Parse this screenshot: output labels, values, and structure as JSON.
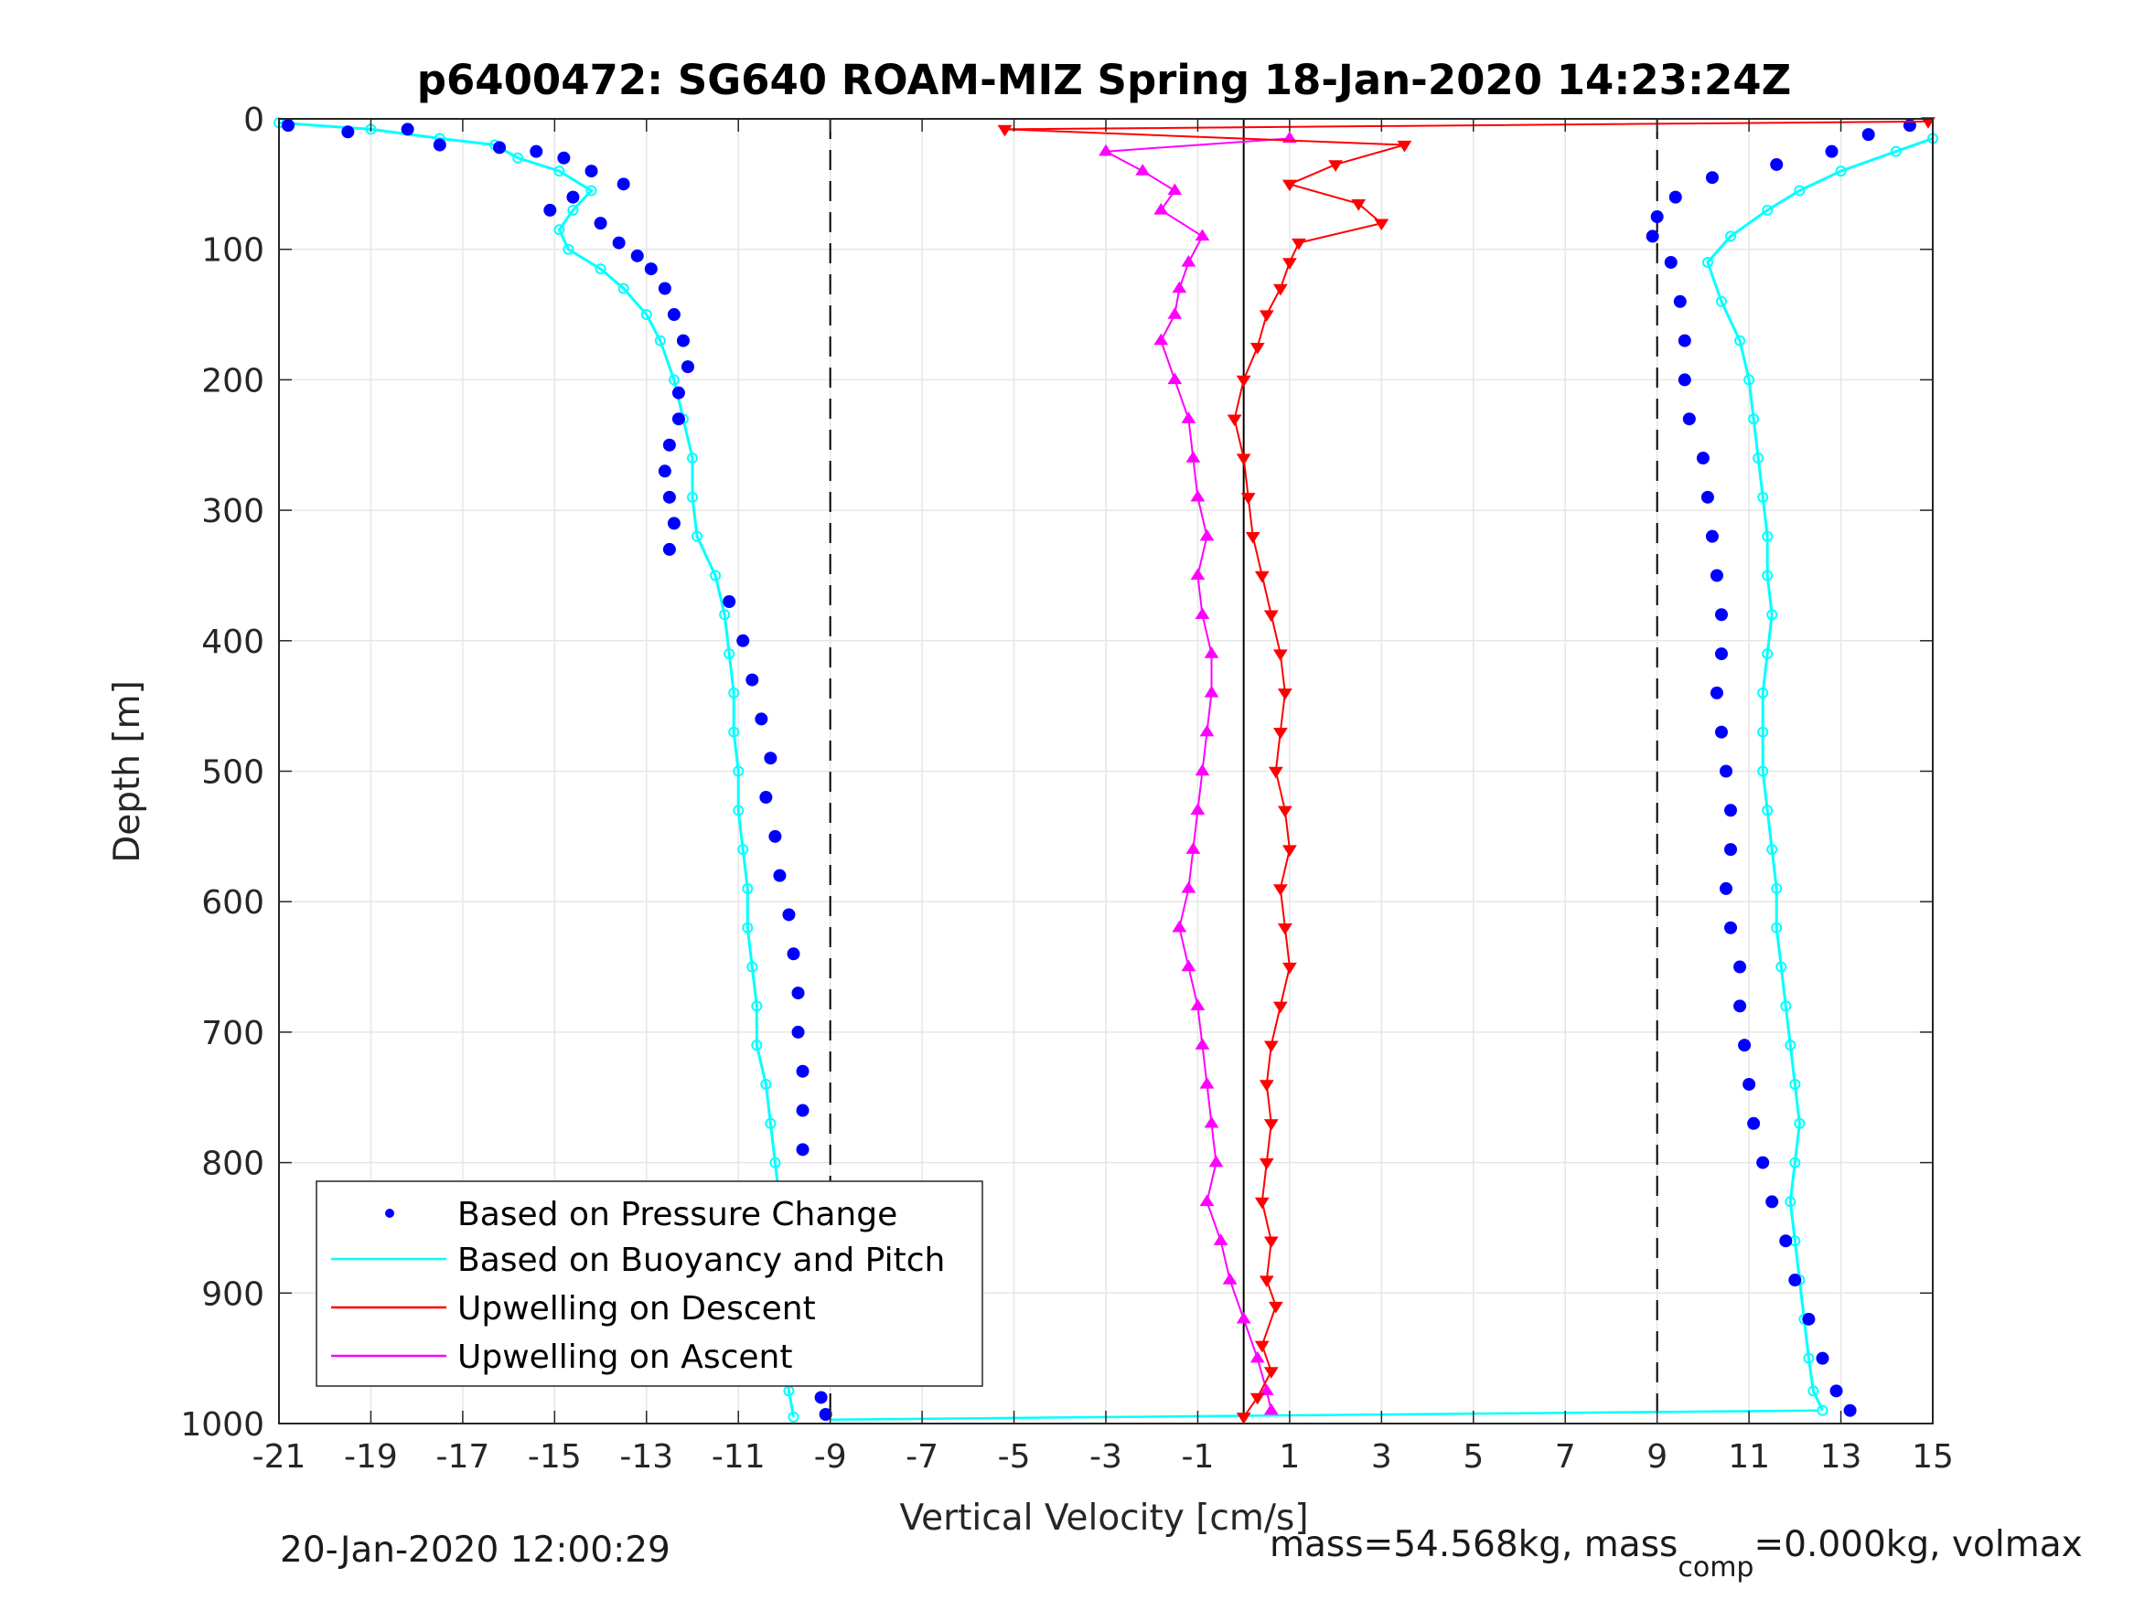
{
  "chart_data": {
    "type": "scatter",
    "title": "p6400472: SG640 ROAM-MIZ Spring 18-Jan-2020 14:23:24Z",
    "xlabel": "Vertical Velocity [cm/s]",
    "ylabel": "Depth [m]",
    "xlim": [
      -21,
      15
    ],
    "ylim": [
      0,
      1000
    ],
    "y_reversed": true,
    "grid": true,
    "xticks": [
      "-21",
      "-19",
      "-17",
      "-15",
      "-13",
      "-11",
      "-9",
      "-7",
      "-5",
      "-3",
      "-1",
      "1",
      "3",
      "5",
      "7",
      "9",
      "11",
      "13",
      "15"
    ],
    "yticks": [
      "0",
      "100",
      "200",
      "300",
      "400",
      "500",
      "600",
      "700",
      "800",
      "900",
      "1000"
    ],
    "reference_lines": [
      {
        "x": -9,
        "style": "dashed"
      },
      {
        "x": 0,
        "style": "solid"
      },
      {
        "x": 9,
        "style": "dashed"
      }
    ],
    "legend_position": "bottom-left",
    "series": [
      {
        "name": "Based on Pressure Change",
        "color": "#0000ff",
        "marker": "dot",
        "descent_points": [
          [
            -20.8,
            5
          ],
          [
            -19.5,
            10
          ],
          [
            -18.2,
            8
          ],
          [
            -17.5,
            20
          ],
          [
            -16.2,
            22
          ],
          [
            -15.4,
            25
          ],
          [
            -14.8,
            30
          ],
          [
            -14.2,
            40
          ],
          [
            -13.5,
            50
          ],
          [
            -14.6,
            60
          ],
          [
            -15.1,
            70
          ],
          [
            -14.0,
            80
          ],
          [
            -13.6,
            95
          ],
          [
            -13.2,
            105
          ],
          [
            -12.9,
            115
          ],
          [
            -12.6,
            130
          ],
          [
            -12.4,
            150
          ],
          [
            -12.2,
            170
          ],
          [
            -12.1,
            190
          ],
          [
            -12.3,
            210
          ],
          [
            -12.3,
            230
          ],
          [
            -12.5,
            250
          ],
          [
            -12.6,
            270
          ],
          [
            -12.5,
            290
          ],
          [
            -12.4,
            310
          ],
          [
            -12.5,
            330
          ],
          [
            -11.2,
            370
          ],
          [
            -10.9,
            400
          ],
          [
            -10.7,
            430
          ],
          [
            -10.5,
            460
          ],
          [
            -10.3,
            490
          ],
          [
            -10.4,
            520
          ],
          [
            -10.2,
            550
          ],
          [
            -10.1,
            580
          ],
          [
            -9.9,
            610
          ],
          [
            -9.8,
            640
          ],
          [
            -9.7,
            670
          ],
          [
            -9.7,
            700
          ],
          [
            -9.6,
            730
          ],
          [
            -9.6,
            760
          ],
          [
            -9.6,
            790
          ],
          [
            -9.5,
            820
          ],
          [
            -9.5,
            850
          ],
          [
            -9.5,
            880
          ],
          [
            -9.4,
            910
          ],
          [
            -9.4,
            940
          ],
          [
            -9.3,
            960
          ],
          [
            -9.2,
            980
          ],
          [
            -9.1,
            993
          ]
        ],
        "ascent_points": [
          [
            14.5,
            5
          ],
          [
            13.6,
            12
          ],
          [
            12.8,
            25
          ],
          [
            11.6,
            35
          ],
          [
            10.2,
            45
          ],
          [
            9.4,
            60
          ],
          [
            9.0,
            75
          ],
          [
            8.9,
            90
          ],
          [
            9.3,
            110
          ],
          [
            9.5,
            140
          ],
          [
            9.6,
            170
          ],
          [
            9.6,
            200
          ],
          [
            9.7,
            230
          ],
          [
            10.0,
            260
          ],
          [
            10.1,
            290
          ],
          [
            10.2,
            320
          ],
          [
            10.3,
            350
          ],
          [
            10.4,
            380
          ],
          [
            10.4,
            410
          ],
          [
            10.3,
            440
          ],
          [
            10.4,
            470
          ],
          [
            10.5,
            500
          ],
          [
            10.6,
            530
          ],
          [
            10.6,
            560
          ],
          [
            10.5,
            590
          ],
          [
            10.6,
            620
          ],
          [
            10.8,
            650
          ],
          [
            10.8,
            680
          ],
          [
            10.9,
            710
          ],
          [
            11.0,
            740
          ],
          [
            11.1,
            770
          ],
          [
            11.3,
            800
          ],
          [
            11.5,
            830
          ],
          [
            11.8,
            860
          ],
          [
            12.0,
            890
          ],
          [
            12.3,
            920
          ],
          [
            12.6,
            950
          ],
          [
            12.9,
            975
          ],
          [
            13.2,
            990
          ]
        ]
      },
      {
        "name": "Based on Buoyancy and Pitch",
        "color": "#00ffff",
        "marker": "line-with-circles",
        "descent_points": [
          [
            -21.0,
            3
          ],
          [
            -19.0,
            8
          ],
          [
            -17.5,
            15
          ],
          [
            -16.3,
            20
          ],
          [
            -15.8,
            30
          ],
          [
            -14.9,
            40
          ],
          [
            -14.2,
            55
          ],
          [
            -14.6,
            70
          ],
          [
            -14.9,
            85
          ],
          [
            -14.7,
            100
          ],
          [
            -14.0,
            115
          ],
          [
            -13.5,
            130
          ],
          [
            -13.0,
            150
          ],
          [
            -12.7,
            170
          ],
          [
            -12.4,
            200
          ],
          [
            -12.2,
            230
          ],
          [
            -12.0,
            260
          ],
          [
            -12.0,
            290
          ],
          [
            -11.9,
            320
          ],
          [
            -11.5,
            350
          ],
          [
            -11.3,
            380
          ],
          [
            -11.2,
            410
          ],
          [
            -11.1,
            440
          ],
          [
            -11.1,
            470
          ],
          [
            -11.0,
            500
          ],
          [
            -11.0,
            530
          ],
          [
            -10.9,
            560
          ],
          [
            -10.8,
            590
          ],
          [
            -10.8,
            620
          ],
          [
            -10.7,
            650
          ],
          [
            -10.6,
            680
          ],
          [
            -10.6,
            710
          ],
          [
            -10.4,
            740
          ],
          [
            -10.3,
            770
          ],
          [
            -10.2,
            800
          ],
          [
            -10.1,
            830
          ],
          [
            -10.1,
            860
          ],
          [
            -10.0,
            890
          ],
          [
            -10.0,
            920
          ],
          [
            -10.0,
            950
          ],
          [
            -9.9,
            975
          ],
          [
            -9.8,
            995
          ]
        ],
        "ascent_points": [
          [
            15.0,
            15
          ],
          [
            14.2,
            25
          ],
          [
            13.0,
            40
          ],
          [
            12.1,
            55
          ],
          [
            11.4,
            70
          ],
          [
            10.6,
            90
          ],
          [
            10.1,
            110
          ],
          [
            10.4,
            140
          ],
          [
            10.8,
            170
          ],
          [
            11.0,
            200
          ],
          [
            11.1,
            230
          ],
          [
            11.2,
            260
          ],
          [
            11.3,
            290
          ],
          [
            11.4,
            320
          ],
          [
            11.4,
            350
          ],
          [
            11.5,
            380
          ],
          [
            11.4,
            410
          ],
          [
            11.3,
            440
          ],
          [
            11.3,
            470
          ],
          [
            11.3,
            500
          ],
          [
            11.4,
            530
          ],
          [
            11.5,
            560
          ],
          [
            11.6,
            590
          ],
          [
            11.6,
            620
          ],
          [
            11.7,
            650
          ],
          [
            11.8,
            680
          ],
          [
            11.9,
            710
          ],
          [
            12.0,
            740
          ],
          [
            12.1,
            770
          ],
          [
            12.0,
            800
          ],
          [
            11.9,
            830
          ],
          [
            12.0,
            860
          ],
          [
            12.1,
            890
          ],
          [
            12.2,
            920
          ],
          [
            12.3,
            950
          ],
          [
            12.4,
            975
          ],
          [
            12.6,
            990
          ]
        ],
        "surface_line": [
          [
            -9.0,
            997
          ],
          [
            12.5,
            990
          ]
        ]
      },
      {
        "name": "Upwelling on Descent",
        "color": "#ff0000",
        "marker": "line-with-down-triangles",
        "points": [
          [
            14.9,
            2
          ],
          [
            -5.2,
            8
          ],
          [
            3.5,
            20
          ],
          [
            2.0,
            35
          ],
          [
            1.0,
            50
          ],
          [
            2.5,
            65
          ],
          [
            3.0,
            80
          ],
          [
            1.2,
            95
          ],
          [
            1.0,
            110
          ],
          [
            0.8,
            130
          ],
          [
            0.5,
            150
          ],
          [
            0.3,
            175
          ],
          [
            0.0,
            200
          ],
          [
            -0.2,
            230
          ],
          [
            0.0,
            260
          ],
          [
            0.1,
            290
          ],
          [
            0.2,
            320
          ],
          [
            0.4,
            350
          ],
          [
            0.6,
            380
          ],
          [
            0.8,
            410
          ],
          [
            0.9,
            440
          ],
          [
            0.8,
            470
          ],
          [
            0.7,
            500
          ],
          [
            0.9,
            530
          ],
          [
            1.0,
            560
          ],
          [
            0.8,
            590
          ],
          [
            0.9,
            620
          ],
          [
            1.0,
            650
          ],
          [
            0.8,
            680
          ],
          [
            0.6,
            710
          ],
          [
            0.5,
            740
          ],
          [
            0.6,
            770
          ],
          [
            0.5,
            800
          ],
          [
            0.4,
            830
          ],
          [
            0.6,
            860
          ],
          [
            0.5,
            890
          ],
          [
            0.7,
            910
          ],
          [
            0.4,
            940
          ],
          [
            0.6,
            960
          ],
          [
            0.3,
            980
          ],
          [
            0.0,
            995
          ]
        ]
      },
      {
        "name": "Upwelling on Ascent",
        "color": "#ff00ff",
        "marker": "line-with-up-triangles",
        "points": [
          [
            1.0,
            15
          ],
          [
            -3.0,
            25
          ],
          [
            -2.2,
            40
          ],
          [
            -1.5,
            55
          ],
          [
            -1.8,
            70
          ],
          [
            -0.9,
            90
          ],
          [
            -1.2,
            110
          ],
          [
            -1.4,
            130
          ],
          [
            -1.5,
            150
          ],
          [
            -1.8,
            170
          ],
          [
            -1.5,
            200
          ],
          [
            -1.2,
            230
          ],
          [
            -1.1,
            260
          ],
          [
            -1.0,
            290
          ],
          [
            -0.8,
            320
          ],
          [
            -1.0,
            350
          ],
          [
            -0.9,
            380
          ],
          [
            -0.7,
            410
          ],
          [
            -0.7,
            440
          ],
          [
            -0.8,
            470
          ],
          [
            -0.9,
            500
          ],
          [
            -1.0,
            530
          ],
          [
            -1.1,
            560
          ],
          [
            -1.2,
            590
          ],
          [
            -1.4,
            620
          ],
          [
            -1.2,
            650
          ],
          [
            -1.0,
            680
          ],
          [
            -0.9,
            710
          ],
          [
            -0.8,
            740
          ],
          [
            -0.7,
            770
          ],
          [
            -0.6,
            800
          ],
          [
            -0.8,
            830
          ],
          [
            -0.5,
            860
          ],
          [
            -0.3,
            890
          ],
          [
            0.0,
            920
          ],
          [
            0.3,
            950
          ],
          [
            0.5,
            975
          ],
          [
            0.6,
            990
          ]
        ]
      }
    ]
  },
  "footer": {
    "timestamp": "20-Jan-2020 12:00:29",
    "mass_prefix": "mass=54.568kg, mass",
    "mass_sub": "comp",
    "mass_suffix": "=0.000kg, volmax"
  },
  "colors": {
    "pressure": "#0000ff",
    "buoyancy": "#00ffff",
    "descent": "#ff0000",
    "ascent": "#ff00ff",
    "grid": "#e6e6e6",
    "axes": "#262626"
  }
}
